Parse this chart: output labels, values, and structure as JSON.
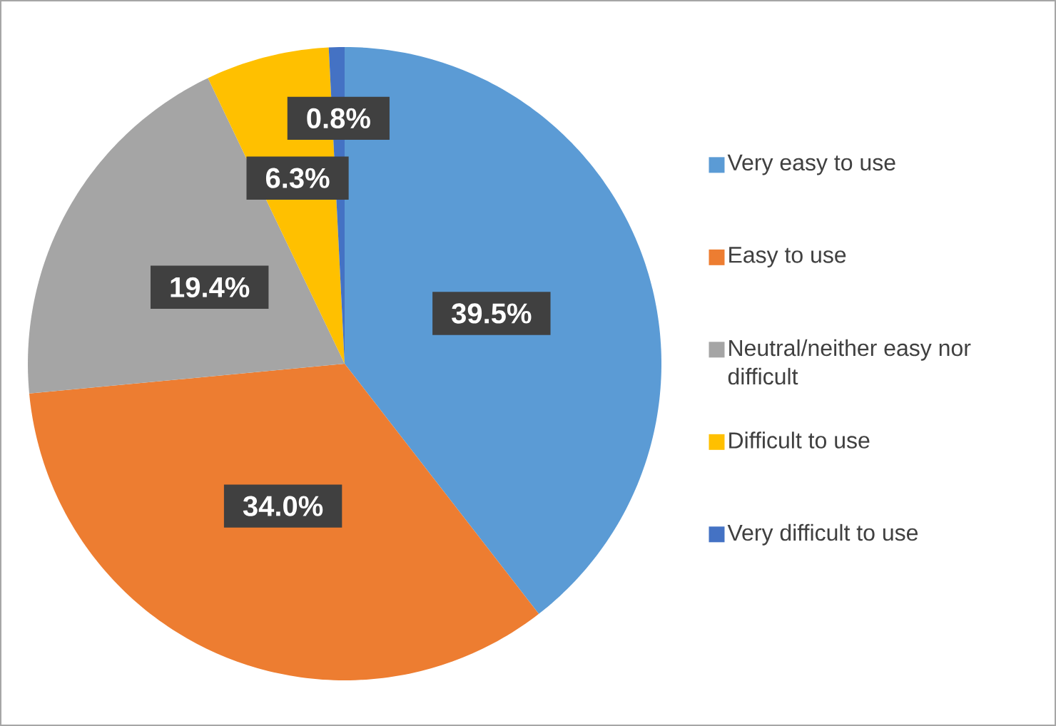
{
  "chart_data": {
    "type": "pie",
    "categories": [
      "Very easy to use",
      "Easy to use",
      "Neutral/neither easy nor difficult",
      "Difficult to use",
      "Very difficult to use"
    ],
    "values": [
      39.5,
      34.0,
      19.4,
      6.3,
      0.8
    ],
    "colors": [
      "#5b9bd5",
      "#ed7d31",
      "#a5a5a5",
      "#ffc000",
      "#4472c4"
    ],
    "value_labels": [
      "39.5%",
      "34.0%",
      "19.4%",
      "6.3%",
      "0.8%"
    ],
    "legend": "right"
  }
}
